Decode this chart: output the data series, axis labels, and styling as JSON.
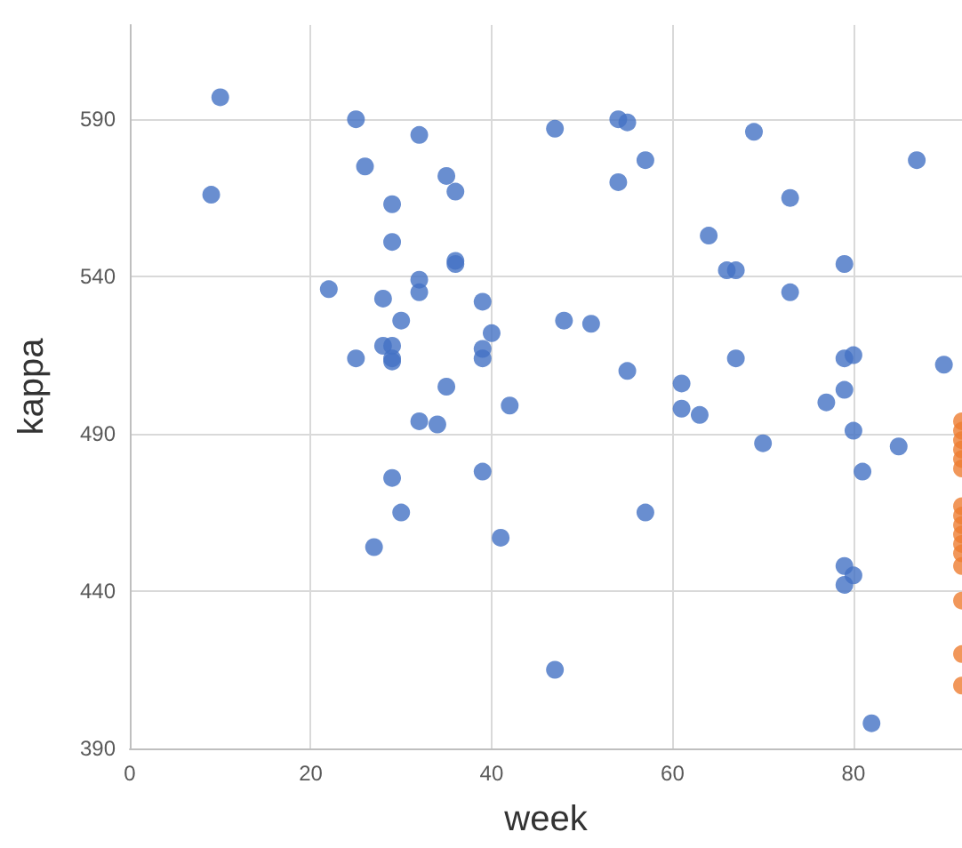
{
  "chart_data": {
    "type": "scatter",
    "xlabel": "week",
    "ylabel": "kappa",
    "xlim": [
      0,
      92
    ],
    "xticks": [
      0,
      20,
      40,
      60,
      80
    ],
    "ylim": [
      390,
      620
    ],
    "yticks": [
      390,
      440,
      490,
      540,
      590
    ],
    "grid": true,
    "marker": "circle",
    "series": [
      {
        "color": "#4472c4",
        "x": [
          10,
          9,
          25,
          26,
          32,
          29,
          35,
          36,
          29,
          36,
          36,
          22,
          32,
          32,
          28,
          39,
          30,
          40,
          28,
          29,
          25,
          29,
          29,
          39,
          39,
          35,
          42,
          32,
          34,
          39,
          29,
          30,
          27,
          41,
          47,
          47,
          54,
          55,
          57,
          54,
          69,
          73,
          64,
          66,
          67,
          73,
          79,
          87,
          48,
          51,
          55,
          67,
          79,
          80,
          61,
          61,
          63,
          79,
          77,
          90,
          80,
          70,
          85,
          81,
          57,
          79,
          80,
          79,
          82
        ],
        "values": [
          597,
          566,
          590,
          575,
          585,
          563,
          572,
          567,
          551,
          545,
          544,
          536,
          539,
          535,
          533,
          532,
          526,
          522,
          518,
          518,
          514,
          514,
          513,
          517,
          514,
          505,
          499,
          494,
          493,
          478,
          476,
          465,
          454,
          457,
          415,
          587,
          590,
          589,
          577,
          570,
          586,
          565,
          553,
          542,
          542,
          535,
          544,
          577,
          526,
          525,
          510,
          514,
          514,
          515,
          506,
          498,
          496,
          504,
          500,
          512,
          491,
          487,
          486,
          478,
          465,
          448,
          445,
          442,
          398
        ]
      },
      {
        "color": "#ed7d31",
        "x": [
          92,
          92,
          92,
          92,
          92,
          92,
          92,
          92,
          92,
          92,
          92,
          92,
          92,
          92,
          92,
          92
        ],
        "values": [
          494,
          491,
          488,
          485,
          482,
          479,
          467,
          464,
          461,
          458,
          455,
          452,
          448,
          437,
          420,
          410
        ]
      }
    ]
  }
}
